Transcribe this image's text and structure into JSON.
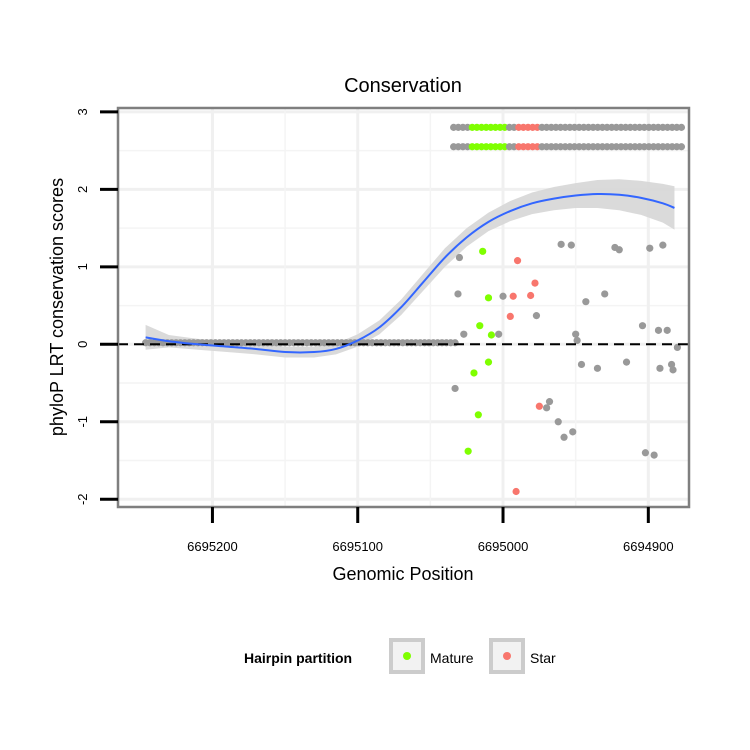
{
  "chart_data": {
    "type": "scatter",
    "title": "Conservation",
    "xlabel": "Genomic Position",
    "ylabel": "phyloP LRT conservation scores",
    "x_reversed": true,
    "xlim": [
      6695265,
      6694872
    ],
    "ylim": [
      -2.1,
      3.05
    ],
    "x_ticks": [
      6695200,
      6695100,
      6695000,
      6694900
    ],
    "x_tick_labels": [
      "6695200",
      "6695100",
      "6695000",
      "6694900"
    ],
    "y_ticks": [
      -2,
      -1,
      0,
      1,
      2,
      3
    ],
    "y_tick_labels": [
      "-2",
      "-1",
      "0",
      "1",
      "2",
      "3"
    ],
    "reference_line": {
      "y": 0,
      "style": "dashed"
    },
    "grid": true,
    "legend": {
      "title": "Hairpin partition",
      "position": "bottom",
      "entries": [
        {
          "label": "Mature",
          "color": "#7fff00"
        },
        {
          "label": "Star",
          "color": "#f8766d"
        }
      ]
    },
    "colors": {
      "other": "#999999",
      "Mature": "#7fff00",
      "Star": "#f8766d",
      "smooth": "#3366ff",
      "ribbon": "#d6d6d6"
    },
    "series": [
      {
        "name": "Other",
        "points": [
          [
            6695030,
            1.12
          ],
          [
            6695031,
            0.65
          ],
          [
            6695027,
            0.13
          ],
          [
            6695033,
            -0.57
          ],
          [
            6695000,
            0.62
          ],
          [
            6695003,
            0.13
          ],
          [
            6694977,
            0.37
          ],
          [
            6694970,
            -0.82
          ],
          [
            6694968,
            -0.74
          ],
          [
            6694962,
            -1.0
          ],
          [
            6694958,
            -1.2
          ],
          [
            6694952,
            -1.13
          ],
          [
            6694950,
            0.13
          ],
          [
            6694949,
            0.05
          ],
          [
            6694946,
            -0.26
          ],
          [
            6694943,
            0.55
          ],
          [
            6694935,
            -0.31
          ],
          [
            6694930,
            0.65
          ],
          [
            6694923,
            1.25
          ],
          [
            6694920,
            1.22
          ],
          [
            6694915,
            -0.23
          ],
          [
            6694904,
            0.24
          ],
          [
            6694902,
            -1.4
          ],
          [
            6694896,
            -1.43
          ],
          [
            6694899,
            1.24
          ],
          [
            6694893,
            0.18
          ],
          [
            6694892,
            -0.31
          ],
          [
            6694890,
            1.28
          ],
          [
            6694887,
            0.18
          ],
          [
            6694884,
            -0.26
          ],
          [
            6694883,
            -0.33
          ],
          [
            6694880,
            -0.04
          ],
          [
            6694960,
            1.29
          ],
          [
            6694953,
            1.28
          ]
        ]
      },
      {
        "name": "Mature",
        "points": [
          [
            6695014,
            1.2
          ],
          [
            6695010,
            0.6
          ],
          [
            6695008,
            0.12
          ],
          [
            6695016,
            0.24
          ],
          [
            6695010,
            -0.23
          ],
          [
            6695020,
            -0.37
          ],
          [
            6695017,
            -0.91
          ],
          [
            6695024,
            -1.38
          ]
        ]
      },
      {
        "name": "Star",
        "points": [
          [
            6694990,
            1.08
          ],
          [
            6694978,
            0.79
          ],
          [
            6694993,
            0.62
          ],
          [
            6694981,
            0.63
          ],
          [
            6694995,
            0.36
          ],
          [
            6694975,
            -0.8
          ],
          [
            6694991,
            -1.9
          ]
        ]
      }
    ],
    "baseline_points": {
      "x_from": 6695246,
      "x_to": 6695032,
      "step": 3,
      "y": 0.02
    },
    "top_rows": {
      "y_values": [
        2.8,
        2.55
      ],
      "x_from": 6695034,
      "x_to": 6694876,
      "step": 3.2,
      "mature_x_range": [
        6695022,
        6694998
      ],
      "star_x_range": [
        6694992,
        6694975
      ]
    },
    "smooth_fit": [
      [
        6695246,
        0.09,
        0.16
      ],
      [
        6695230,
        0.04,
        0.08
      ],
      [
        6695210,
        0.0,
        0.07
      ],
      [
        6695190,
        -0.03,
        0.07
      ],
      [
        6695170,
        -0.06,
        0.07
      ],
      [
        6695150,
        -0.1,
        0.07
      ],
      [
        6695130,
        -0.1,
        0.07
      ],
      [
        6695115,
        -0.06,
        0.07
      ],
      [
        6695100,
        0.05,
        0.08
      ],
      [
        6695085,
        0.22,
        0.09
      ],
      [
        6695070,
        0.48,
        0.1
      ],
      [
        6695055,
        0.8,
        0.11
      ],
      [
        6695040,
        1.12,
        0.12
      ],
      [
        6695025,
        1.38,
        0.12
      ],
      [
        6695010,
        1.58,
        0.12
      ],
      [
        6694995,
        1.72,
        0.13
      ],
      [
        6694980,
        1.82,
        0.14
      ],
      [
        6694965,
        1.88,
        0.15
      ],
      [
        6694950,
        1.92,
        0.16
      ],
      [
        6694935,
        1.94,
        0.18
      ],
      [
        6694920,
        1.93,
        0.2
      ],
      [
        6694905,
        1.89,
        0.22
      ],
      [
        6694890,
        1.82,
        0.25
      ],
      [
        6694882,
        1.76,
        0.28
      ]
    ]
  }
}
